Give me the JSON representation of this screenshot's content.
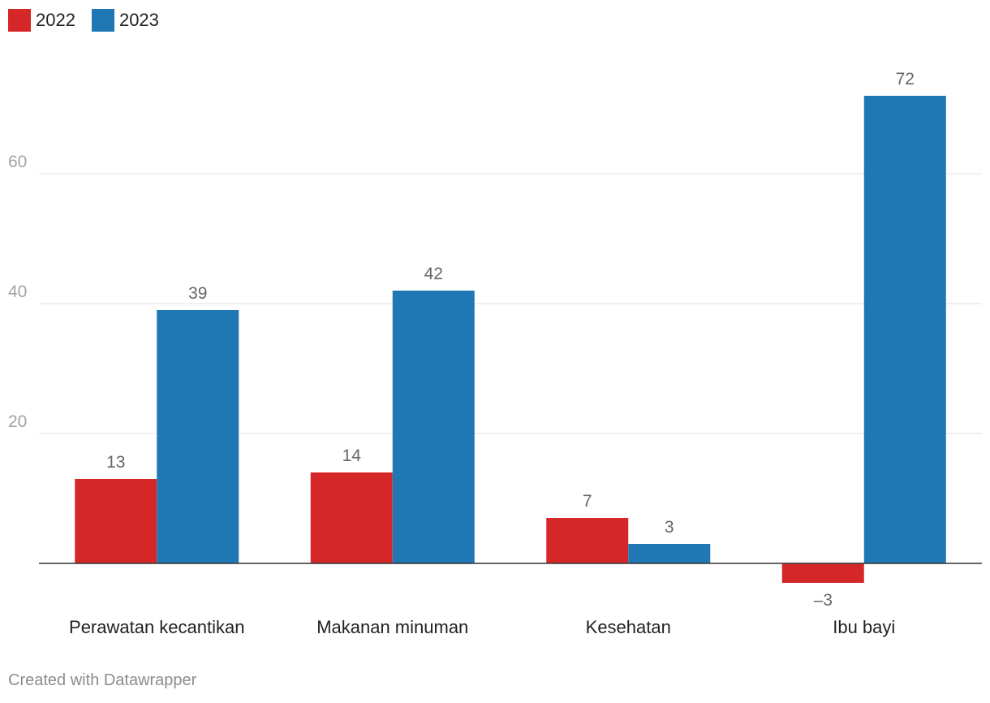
{
  "chart_data": {
    "type": "bar",
    "categories": [
      "Perawatan kecantikan",
      "Makanan minuman",
      "Kesehatan",
      "Ibu bayi"
    ],
    "series": [
      {
        "name": "2022",
        "color": "#d62728",
        "values": [
          13,
          14,
          7,
          -3
        ],
        "labels": [
          "13",
          "14",
          "7",
          "–3"
        ]
      },
      {
        "name": "2023",
        "color": "#1f77b4",
        "values": [
          39,
          42,
          3,
          72
        ],
        "labels": [
          "39",
          "42",
          "3",
          "72"
        ]
      }
    ],
    "ylim": [
      -6,
      75
    ],
    "yticks": [
      20,
      40,
      60
    ],
    "grid": true,
    "legend": "top-left"
  },
  "footer": "Created with Datawrapper"
}
